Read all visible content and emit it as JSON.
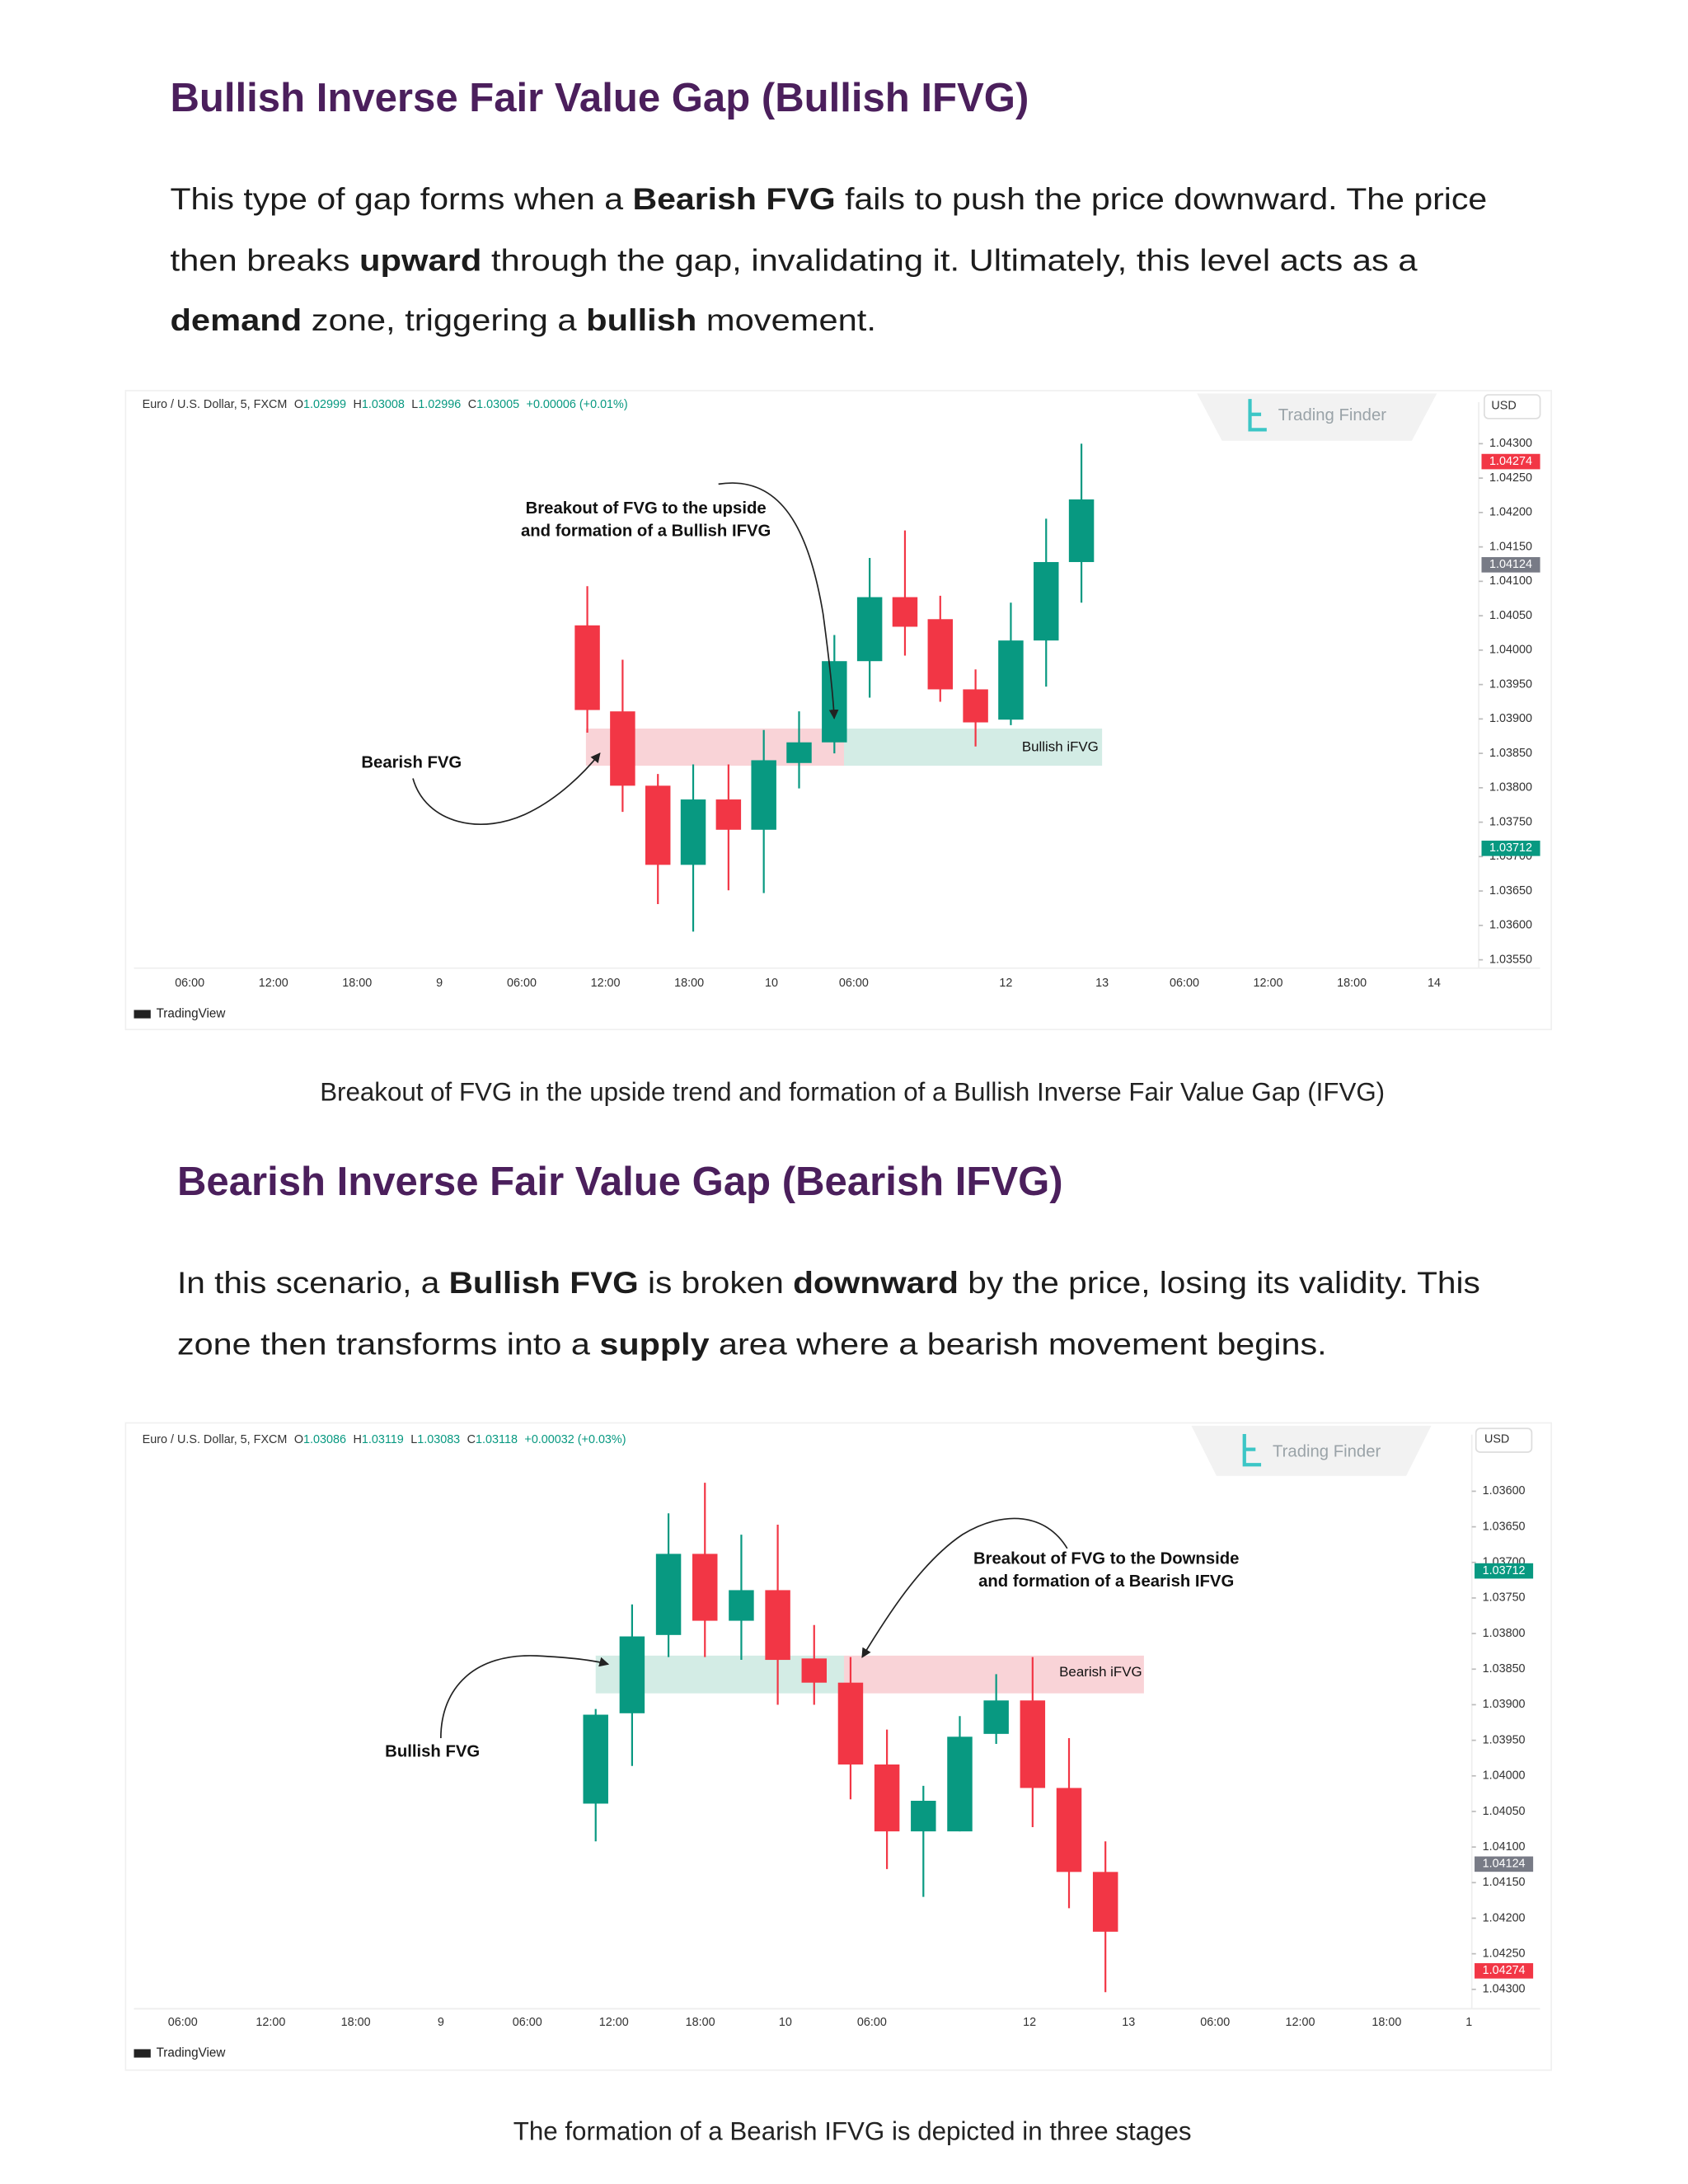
{
  "sections": [
    {
      "title": "Bullish Inverse Fair Value Gap (Bullish IFVG)",
      "lines": [
        [
          {
            "text": "This type of gap forms when a ",
            "bold": false
          },
          {
            "text": "Bearish FVG",
            "bold": true
          },
          {
            "text": " fails to push the price downward. The price",
            "bold": false
          }
        ],
        [
          {
            "text": "then breaks ",
            "bold": false
          },
          {
            "text": "upward",
            "bold": true
          },
          {
            "text": " through the gap, invalidating it. Ultimately, this level acts as a",
            "bold": false
          }
        ],
        [
          {
            "text": "demand",
            "bold": true
          },
          {
            "text": " zone, triggering a ",
            "bold": false
          },
          {
            "text": "bullish",
            "bold": true
          },
          {
            "text": " movement.",
            "bold": false
          }
        ]
      ],
      "caption": "Breakout of FVG in the upside trend and formation of a Bullish Inverse Fair Value Gap (IFVG)",
      "chart": {
        "type": "candlestick",
        "symbol": "Euro / U.S. Dollar, 5, FXCM",
        "ohlc": [
          [
            "O",
            "1.02999"
          ],
          [
            "H",
            "1.03008"
          ],
          [
            "L",
            "1.02996"
          ],
          [
            "C",
            "1.03005"
          ]
        ],
        "change": "+0.00006 (+0.01%)",
        "watermark": "Trading Finder",
        "currency": "USD",
        "brand": "TradingView",
        "ylim": [
          1.0353,
          1.0434
        ],
        "invert": false,
        "yticks": [
          {
            "value": 1.043,
            "label": "1.04300"
          },
          {
            "value": 1.0425,
            "label": "1.04250"
          },
          {
            "value": 1.042,
            "label": "1.04200"
          },
          {
            "value": 1.0415,
            "label": "1.04150"
          },
          {
            "value": 1.041,
            "label": "1.04100"
          },
          {
            "value": 1.0405,
            "label": "1.04050"
          },
          {
            "value": 1.04,
            "label": "1.04000"
          },
          {
            "value": 1.0395,
            "label": "1.03950"
          },
          {
            "value": 1.039,
            "label": "1.03900"
          },
          {
            "value": 1.0385,
            "label": "1.03850"
          },
          {
            "value": 1.038,
            "label": "1.03800"
          },
          {
            "value": 1.0375,
            "label": "1.03750"
          },
          {
            "value": 1.037,
            "label": "1.03700"
          },
          {
            "value": 1.0365,
            "label": "1.03650"
          },
          {
            "value": 1.036,
            "label": "1.03600"
          },
          {
            "value": 1.0355,
            "label": "1.03550"
          }
        ],
        "price_tags": [
          {
            "value": 1.04274,
            "color": "#f23645"
          },
          {
            "value": 1.04124,
            "color": "#787b86"
          },
          {
            "value": 1.03712,
            "color": "#089981"
          }
        ],
        "xticks": [
          "06:00",
          "12:00",
          "18:00",
          "9",
          "06:00",
          "12:00",
          "18:00",
          "10",
          "06:00",
          "12",
          "13",
          "06:00",
          "12:00",
          "18:00",
          "14"
        ],
        "up_color": "#089981",
        "down_color": "#f23645",
        "zone": {
          "low": 1.03832,
          "high": 1.03886
        },
        "zone_colors": [
          "#f9d3d7",
          "#d3ece5"
        ],
        "zone_label": "Bullish iFVG",
        "annotations": {
          "breakout": [
            "Breakout of FVG to the upside",
            "and formation of a Bullish IFVG"
          ],
          "fvg": "Bearish FVG"
        },
        "candles": [
          {
            "open": 1.04036,
            "high": 1.04093,
            "low": 1.0388,
            "close": 1.03913
          },
          {
            "open": 1.03911,
            "high": 1.03986,
            "low": 1.03765,
            "close": 1.03803
          },
          {
            "open": 1.03803,
            "high": 1.0382,
            "low": 1.03631,
            "close": 1.03688
          },
          {
            "open": 1.03688,
            "high": 1.03834,
            "low": 1.03591,
            "close": 1.03783
          },
          {
            "open": 1.03783,
            "high": 1.03834,
            "low": 1.03651,
            "close": 1.03739
          },
          {
            "open": 1.03739,
            "high": 1.03884,
            "low": 1.03647,
            "close": 1.0384
          },
          {
            "open": 1.03836,
            "high": 1.03911,
            "low": 1.03799,
            "close": 1.03866
          },
          {
            "open": 1.03866,
            "high": 1.04022,
            "low": 1.0385,
            "close": 1.03984
          },
          {
            "open": 1.03984,
            "high": 1.04134,
            "low": 1.03931,
            "close": 1.04077
          },
          {
            "open": 1.04077,
            "high": 1.04174,
            "low": 1.03992,
            "close": 1.04034
          },
          {
            "open": 1.04045,
            "high": 1.04079,
            "low": 1.03925,
            "close": 1.03943
          },
          {
            "open": 1.03943,
            "high": 1.03972,
            "low": 1.0386,
            "close": 1.03895
          },
          {
            "open": 1.03899,
            "high": 1.04069,
            "low": 1.03891,
            "close": 1.04014
          },
          {
            "open": 1.04014,
            "high": 1.04191,
            "low": 1.03947,
            "close": 1.04128
          },
          {
            "open": 1.04128,
            "high": 1.043,
            "low": 1.04069,
            "close": 1.04219
          }
        ]
      }
    },
    {
      "title": "Bearish Inverse Fair Value Gap (Bearish IFVG)",
      "lines": [
        [
          {
            "text": "In this scenario, a ",
            "bold": false
          },
          {
            "text": "Bullish FVG",
            "bold": true
          },
          {
            "text": " is broken ",
            "bold": false
          },
          {
            "text": "downward",
            "bold": true
          },
          {
            "text": " by the price, losing its validity. This",
            "bold": false
          }
        ],
        [
          {
            "text": "zone then transforms into a ",
            "bold": false
          },
          {
            "text": "supply",
            "bold": true
          },
          {
            "text": " area where a bearish movement begins.",
            "bold": false
          }
        ]
      ],
      "caption": "The formation of a Bearish IFVG is depicted in three stages",
      "chart": {
        "type": "candlestick",
        "symbol": "Euro / U.S. Dollar, 5, FXCM",
        "ohlc": [
          [
            "O",
            "1.03086"
          ],
          [
            "H",
            "1.03119"
          ],
          [
            "L",
            "1.03083"
          ],
          [
            "C",
            "1.03118"
          ]
        ],
        "change": "+0.00032 (+0.03%)",
        "watermark": "Trading Finder",
        "currency": "USD",
        "brand": "TradingView",
        "ylim": [
          1.0354,
          1.0433
        ],
        "invert": true,
        "yticks": [
          {
            "value": 1.036,
            "label": "1.03600"
          },
          {
            "value": 1.0365,
            "label": "1.03650"
          },
          {
            "value": 1.037,
            "label": "1.03700"
          },
          {
            "value": 1.0375,
            "label": "1.03750"
          },
          {
            "value": 1.038,
            "label": "1.03800"
          },
          {
            "value": 1.0385,
            "label": "1.03850"
          },
          {
            "value": 1.039,
            "label": "1.03900"
          },
          {
            "value": 1.0395,
            "label": "1.03950"
          },
          {
            "value": 1.04,
            "label": "1.04000"
          },
          {
            "value": 1.0405,
            "label": "1.04050"
          },
          {
            "value": 1.041,
            "label": "1.04100"
          },
          {
            "value": 1.0415,
            "label": "1.04150"
          },
          {
            "value": 1.042,
            "label": "1.04200"
          },
          {
            "value": 1.0425,
            "label": "1.04250"
          },
          {
            "value": 1.043,
            "label": "1.04300"
          }
        ],
        "price_tags": [
          {
            "value": 1.03712,
            "color": "#089981"
          },
          {
            "value": 1.04124,
            "color": "#787b86"
          },
          {
            "value": 1.04274,
            "color": "#f23645"
          }
        ],
        "xticks": [
          "06:00",
          "12:00",
          "18:00",
          "9",
          "06:00",
          "12:00",
          "18:00",
          "10",
          "06:00",
          "12",
          "13",
          "06:00",
          "12:00",
          "18:00",
          "1"
        ],
        "up_color": "#f23645",
        "down_color": "#089981",
        "zone": {
          "low": 1.03831,
          "high": 1.03884
        },
        "zone_colors": [
          "#d3ece5",
          "#f9d3d7"
        ],
        "zone_label": "Bearish iFVG",
        "annotations": {
          "breakout": [
            "Breakout of FVG to the Downside",
            "and formation of a Bearish IFVG"
          ],
          "fvg": "Bullish FVG"
        },
        "candles": [
          {
            "open": 1.04039,
            "high": 1.04092,
            "low": 1.03906,
            "close": 1.03914
          },
          {
            "open": 1.03912,
            "high": 1.03986,
            "low": 1.03759,
            "close": 1.03804
          },
          {
            "open": 1.03802,
            "high": 1.03833,
            "low": 1.03631,
            "close": 1.03688
          },
          {
            "open": 1.03688,
            "high": 1.03833,
            "low": 1.03588,
            "close": 1.03782
          },
          {
            "open": 1.03782,
            "high": 1.03837,
            "low": 1.03661,
            "close": 1.03739
          },
          {
            "open": 1.03739,
            "high": 1.039,
            "low": 1.03647,
            "close": 1.03837
          },
          {
            "open": 1.03835,
            "high": 1.039,
            "low": 1.03788,
            "close": 1.03869
          },
          {
            "open": 1.03869,
            "high": 1.04033,
            "low": 1.03833,
            "close": 1.03984
          },
          {
            "open": 1.03984,
            "high": 1.04131,
            "low": 1.03935,
            "close": 1.04078
          },
          {
            "open": 1.04078,
            "high": 1.0417,
            "low": 1.04014,
            "close": 1.04035
          },
          {
            "open": 1.04078,
            "high": 1.04078,
            "low": 1.03916,
            "close": 1.03945
          },
          {
            "open": 1.03941,
            "high": 1.03955,
            "low": 1.03857,
            "close": 1.03894
          },
          {
            "open": 1.03894,
            "high": 1.04072,
            "low": 1.03833,
            "close": 1.04017
          },
          {
            "open": 1.04017,
            "high": 1.04186,
            "low": 1.03947,
            "close": 1.04135
          },
          {
            "open": 1.04135,
            "high": 1.04304,
            "low": 1.04092,
            "close": 1.04219
          }
        ]
      }
    }
  ]
}
